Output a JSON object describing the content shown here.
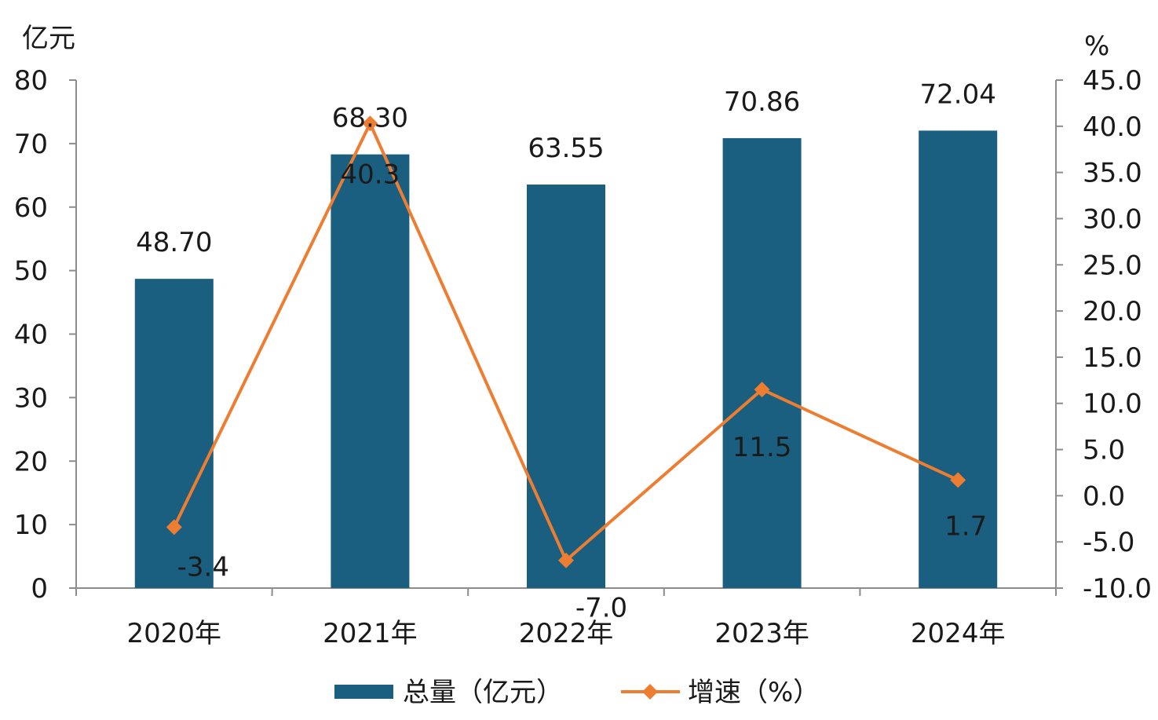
{
  "chart_data": {
    "type": "bar+line",
    "categories": [
      "2020年",
      "2021年",
      "2022年",
      "2023年",
      "2024年"
    ],
    "series": [
      {
        "name": "总量（亿元）",
        "type": "bar",
        "axis": "left",
        "values": [
          48.7,
          68.3,
          63.55,
          70.86,
          72.04
        ],
        "labels": [
          "48.70",
          "68.30",
          "63.55",
          "70.86",
          "72.04"
        ],
        "color": "#1a5e80"
      },
      {
        "name": "增速（%）",
        "type": "line",
        "axis": "right",
        "values": [
          -3.4,
          40.3,
          -7.0,
          11.5,
          1.7
        ],
        "labels": [
          "-3.4",
          "40.3",
          "-7.0",
          "11.5",
          "1.7"
        ],
        "color": "#ed7d31",
        "marker": "diamond"
      }
    ],
    "left_axis": {
      "unit": "亿元",
      "ylim": [
        0,
        80
      ],
      "ticks": [
        "0",
        "10",
        "20",
        "30",
        "40",
        "50",
        "60",
        "70",
        "80"
      ]
    },
    "right_axis": {
      "unit": "%",
      "ylim": [
        -10,
        45
      ],
      "ticks": [
        "-10.0",
        "-5.0",
        "0.0",
        "5.0",
        "10.0",
        "15.0",
        "20.0",
        "25.0",
        "30.0",
        "35.0",
        "40.0",
        "45.0"
      ]
    },
    "grid": false,
    "legend_position": "bottom"
  }
}
